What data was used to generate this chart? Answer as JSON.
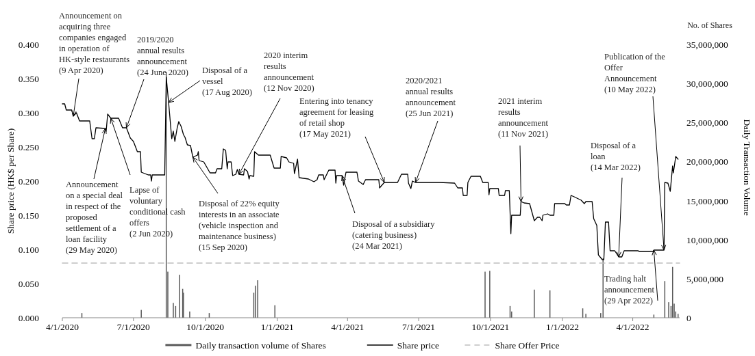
{
  "chart_data": {
    "type": "line",
    "ylabel": "Share price (HK$ per Share)",
    "y2label": "Daily Transaction Volume",
    "legend": "bottom",
    "xlim": [
      "2020-04-01",
      "2022-05-31"
    ],
    "xticks": [
      {
        "value": "2020-04-01",
        "label": "4/1/2020"
      },
      {
        "value": "2020-07-01",
        "label": "7/1/2020"
      },
      {
        "value": "2020-10-01",
        "label": "10/1/2020"
      },
      {
        "value": "2021-01-01",
        "label": "1/1/2021"
      },
      {
        "value": "2021-04-01",
        "label": "4/1/2021"
      },
      {
        "value": "2021-07-01",
        "label": "7/1/2021"
      },
      {
        "value": "2021-10-01",
        "label": "10/1/2021"
      },
      {
        "value": "2022-01-01",
        "label": "1/1/2022"
      },
      {
        "value": "2022-04-01",
        "label": "4/1/2022"
      }
    ],
    "ylim": [
      0,
      0.4
    ],
    "yticks": [
      {
        "value": 0,
        "label": "0.000"
      },
      {
        "value": 0.05,
        "label": "0.050"
      },
      {
        "value": 0.1,
        "label": "0.100"
      },
      {
        "value": 0.15,
        "label": "0.150"
      },
      {
        "value": 0.2,
        "label": "0.200"
      },
      {
        "value": 0.25,
        "label": "0.250"
      },
      {
        "value": 0.3,
        "label": "0.300"
      },
      {
        "value": 0.35,
        "label": "0.350"
      },
      {
        "value": 0.4,
        "label": "0.400"
      }
    ],
    "y2lim": [
      0,
      35000000
    ],
    "y2ticks": [
      0,
      {
        "value": 5000000,
        "label": "5,000,000"
      },
      {
        "value": 10000000,
        "label": "10,000,000"
      },
      {
        "value": 15000000,
        "label": "15,000,000"
      },
      {
        "value": 20000000,
        "label": "20,000,000"
      },
      {
        "value": 25000000,
        "label": "25,000,000"
      },
      {
        "value": 30000000,
        "label": "30,000,000"
      },
      {
        "value": 35000000,
        "label": "35,000,000"
      }
    ],
    "series": [
      {
        "name": "Daily transaction volume of Shares",
        "type": "bar",
        "axis": "y2",
        "color": "#595959",
        "x": [
          "2020-04-26",
          "2020-07-11",
          "2020-08-12",
          "2020-08-14",
          "2020-08-21",
          "2020-08-24",
          "2020-08-29",
          "2020-09-02",
          "2020-09-03",
          "2020-09-11",
          "2020-10-06",
          "2020-12-02",
          "2020-12-04",
          "2020-12-07",
          "2020-12-29",
          "2021-09-24",
          "2021-09-30",
          "2021-10-26",
          "2021-10-28",
          "2021-11-26",
          "2021-12-16",
          "2022-01-27",
          "2022-01-31",
          "2022-02-19",
          "2022-02-22",
          "2022-04-28",
          "2022-05-12",
          "2022-05-17",
          "2022-05-20",
          "2022-05-22",
          "2022-05-24",
          "2022-05-26",
          "2022-05-29"
        ],
        "values": [
          600000,
          1000000,
          31500000,
          5900000,
          1900000,
          1500000,
          5500000,
          3700000,
          3200000,
          800000,
          600000,
          3200000,
          4100000,
          4800000,
          1600000,
          5900000,
          6000000,
          1500000,
          800000,
          3600000,
          3500000,
          1200000,
          500000,
          600000,
          7600000,
          400000,
          4700000,
          2000000,
          1500000,
          6500000,
          1800000,
          800000,
          500000
        ]
      },
      {
        "name": "Share price",
        "color": "#000000",
        "x": [
          "2020-04-01",
          "2020-04-04",
          "2020-04-06",
          "2020-04-13",
          "2020-04-15",
          "2020-04-19",
          "2020-04-23",
          "2020-05-06",
          "2020-05-09",
          "2020-05-12",
          "2020-05-14",
          "2020-05-26",
          "2020-05-27",
          "2020-05-29",
          "2020-06-02",
          "2020-06-12",
          "2020-06-17",
          "2020-06-22",
          "2020-06-27",
          "2020-07-01",
          "2020-07-06",
          "2020-07-10",
          "2020-07-11",
          "2020-07-20",
          "2020-07-23",
          "2020-07-24",
          "2020-07-25",
          "2020-08-10",
          "2020-08-12",
          "2020-08-15",
          "2020-08-19",
          "2020-08-21",
          "2020-08-23",
          "2020-08-26",
          "2020-08-28",
          "2020-08-31",
          "2020-09-03",
          "2020-09-05",
          "2020-09-08",
          "2020-09-12",
          "2020-09-15",
          "2020-09-21",
          "2020-09-22",
          "2020-09-23",
          "2020-09-29",
          "2020-10-07",
          "2020-10-14",
          "2020-10-16",
          "2020-10-22",
          "2020-10-24",
          "2020-10-27",
          "2020-10-29",
          "2020-10-30",
          "2020-11-03",
          "2020-11-05",
          "2020-11-09",
          "2020-11-11",
          "2020-11-13",
          "2020-11-19",
          "2020-11-20",
          "2020-11-24",
          "2020-11-26",
          "2020-11-27",
          "2020-12-02",
          "2020-12-03",
          "2020-12-08",
          "2020-12-23",
          "2020-12-28",
          "2021-01-05",
          "2021-01-06",
          "2021-01-13",
          "2021-01-16",
          "2021-01-22",
          "2021-01-23",
          "2021-01-27",
          "2021-01-29",
          "2021-02-10",
          "2021-02-17",
          "2021-02-21",
          "2021-02-23",
          "2021-03-01",
          "2021-03-02",
          "2021-03-08",
          "2021-03-16",
          "2021-03-17",
          "2021-03-18",
          "2021-03-25",
          "2021-03-27",
          "2021-03-30",
          "2021-04-13",
          "2021-04-15",
          "2021-04-21",
          "2021-04-24",
          "2021-05-11",
          "2021-05-12",
          "2021-05-18",
          "2021-06-04",
          "2021-06-09",
          "2021-06-17",
          "2021-06-18",
          "2021-06-21",
          "2021-06-23",
          "2021-06-27",
          "2021-07-28",
          "2021-08-16",
          "2021-08-20",
          "2021-08-26",
          "2021-08-27",
          "2021-09-01",
          "2021-09-02",
          "2021-09-06",
          "2021-09-18",
          "2021-09-21",
          "2021-09-28",
          "2021-09-29",
          "2021-09-30",
          "2021-10-11",
          "2021-10-12",
          "2021-10-19",
          "2021-10-20",
          "2021-10-25",
          "2021-10-27",
          "2021-10-28",
          "2021-11-08",
          "2021-11-09",
          "2021-11-13",
          "2021-11-20",
          "2021-11-26",
          "2021-11-30",
          "2021-12-03",
          "2021-12-06",
          "2021-12-07",
          "2021-12-13",
          "2021-12-16",
          "2021-12-21",
          "2021-12-22",
          "2022-01-04",
          "2022-01-06",
          "2022-01-10",
          "2022-01-12",
          "2022-01-16",
          "2022-01-25",
          "2022-01-29",
          "2022-01-31",
          "2022-02-08",
          "2022-02-10",
          "2022-02-14",
          "2022-02-16",
          "2022-02-21",
          "2022-02-23",
          "2022-02-25",
          "2022-03-01",
          "2022-03-03",
          "2022-03-09",
          "2022-03-14",
          "2022-03-18",
          "2022-03-21",
          "2022-04-08",
          "2022-04-09",
          "2022-04-27",
          "2022-04-28",
          "2022-05-11",
          "2022-05-12",
          "2022-05-16",
          "2022-05-19",
          "2022-05-22",
          "2022-05-23",
          "2022-05-26",
          "2022-05-29"
        ],
        "values": [
          0.313,
          0.313,
          0.304,
          0.304,
          0.295,
          0.3,
          0.288,
          0.288,
          0.262,
          0.262,
          0.278,
          0.277,
          0.272,
          0.298,
          0.292,
          0.292,
          0.278,
          0.278,
          0.263,
          0.258,
          0.243,
          0.243,
          0.213,
          0.209,
          0.209,
          0.2,
          0.209,
          0.209,
          0.352,
          0.315,
          0.262,
          0.273,
          0.258,
          0.278,
          0.287,
          0.28,
          0.268,
          0.264,
          0.253,
          0.252,
          0.235,
          0.238,
          0.243,
          0.23,
          0.228,
          0.212,
          0.212,
          0.218,
          0.218,
          0.247,
          0.245,
          0.218,
          0.228,
          0.228,
          0.208,
          0.21,
          0.217,
          0.21,
          0.209,
          0.218,
          0.214,
          0.203,
          0.208,
          0.207,
          0.243,
          0.238,
          0.238,
          0.219,
          0.219,
          0.236,
          0.234,
          0.228,
          0.226,
          0.211,
          0.232,
          0.205,
          0.203,
          0.199,
          0.202,
          0.209,
          0.209,
          0.202,
          0.216,
          0.216,
          0.197,
          0.208,
          0.208,
          0.194,
          0.213,
          0.213,
          0.2,
          0.195,
          0.202,
          0.202,
          0.19,
          0.198,
          0.198,
          0.21,
          0.21,
          0.197,
          0.189,
          0.2,
          0.198,
          0.198,
          0.197,
          0.19,
          0.19,
          0.179,
          0.179,
          0.198,
          0.207,
          0.207,
          0.198,
          0.198,
          0.18,
          0.189,
          0.189,
          0.179,
          0.179,
          0.186,
          0.186,
          0.123,
          0.15,
          0.15,
          0.17,
          0.168,
          0.167,
          0.142,
          0.147,
          0.147,
          0.142,
          0.15,
          0.152,
          0.15,
          0.15,
          0.167,
          0.167,
          0.165,
          0.165,
          0.179,
          0.177,
          0.172,
          0.167,
          0.17,
          0.17,
          0.145,
          0.135,
          0.092,
          0.085,
          0.085,
          0.14,
          0.14,
          0.098,
          0.098,
          0.089,
          0.089,
          0.098,
          0.098,
          0.097,
          0.097,
          0.099,
          0.099,
          0.198,
          0.197,
          0.185,
          0.222,
          0.212,
          0.236,
          0.232
        ]
      },
      {
        "name": "Share Offer Price",
        "line_style": "dashed",
        "color": "#bfbfbf",
        "x": [
          "2020-04-01",
          "2022-05-31"
        ],
        "values": [
          0.08,
          0.08
        ]
      }
    ],
    "annotations": [
      "No. of Shares",
      {
        "text": "Announcement on\nacquiring three\ncompanies engaged\nin operation of\nHK-style restaurants\n(9 Apr 2020)",
        "x": "2020-04-15",
        "y": 0.295
      },
      {
        "text": "Announcement\non a special deal\nin respect of the\nproposed\nsettlement of a\nloan facility\n(29 May 2020)",
        "x": "2020-05-26",
        "y": 0.277
      },
      {
        "text": "Lapse of\nvoluntary\nconditional cash\noffers\n(2 Jun 2020)",
        "x": "2020-06-02",
        "y": 0.292
      },
      {
        "text": "2019/2020\nannual results\nannouncement\n(24 June 2020)",
        "x": "2020-06-22",
        "y": 0.278
      },
      {
        "text": "Disposal of a\nvessel\n(17 Aug 2020)",
        "x": "2020-08-15",
        "y": 0.315
      },
      {
        "text": "Disposal of 22% equity\ninterests in an associate\n(vehicle inspection and\nmaintenance business)\n(15 Sep 2020)",
        "x": "2020-09-15",
        "y": 0.235
      },
      {
        "text": "2020 interim\nresults\nannouncement\n(12 Nov 2020)",
        "x": "2020-11-13",
        "y": 0.21
      },
      {
        "text": "Entering into tenancy\nagreement for leasing\nof retail shop\n(17 May 2021)",
        "x": "2021-05-18",
        "y": 0.198
      },
      {
        "text": "2020/2021\nannual results\nannouncement\n(25 Jun 2021)",
        "x": "2021-06-27",
        "y": 0.198
      },
      {
        "text": "Disposal of a subsidiary\n(catering business)\n(24 Mar 2021)",
        "x": "2021-03-25",
        "y": 0.208
      },
      {
        "text": "2021 interim\nresults\nannouncement\n(11 Nov 2021)",
        "x": "2021-11-09",
        "y": 0.17
      },
      {
        "text": "Disposal of a\nloan\n(14 Mar 2022)",
        "x": "2022-03-14",
        "y": 0.089
      },
      {
        "text": "Publication of the\nOffer\nAnnouncement\n(10 May 2022)",
        "x": "2022-05-11",
        "y": 0.099
      },
      {
        "text": "Trading halt\nannouncement\n(29 Apr 2022)",
        "x": "2022-04-28",
        "y": 0.099
      }
    ]
  }
}
